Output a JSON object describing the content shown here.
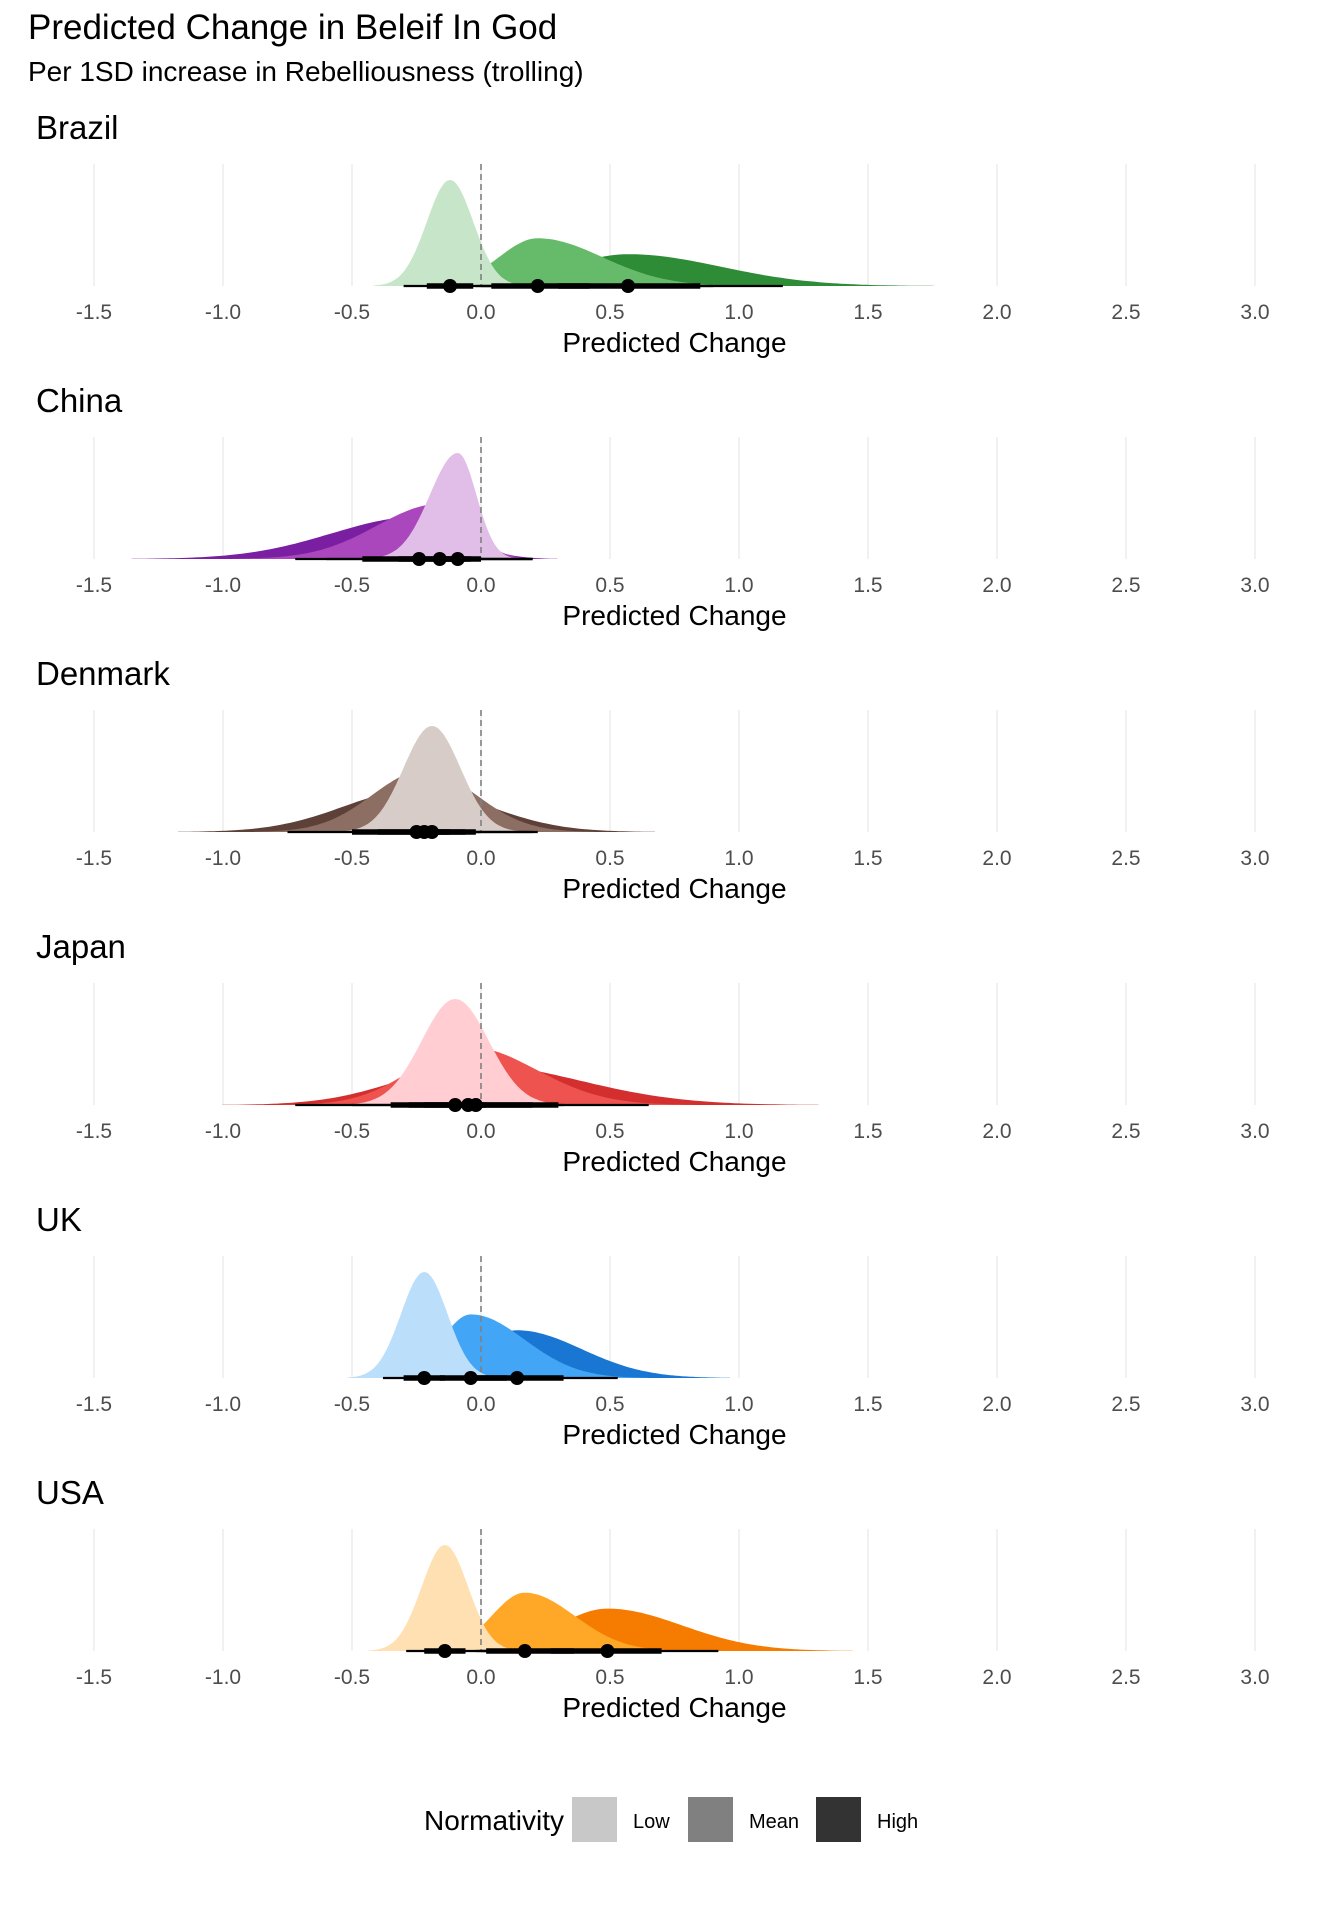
{
  "title": "Predicted Change in Beleif In God",
  "subtitle": "Per 1SD increase in Rebelliousness (trolling)",
  "chart_data": {
    "type": "area",
    "subtype": "half-eye density (posterior distributions) with interval bars",
    "x_label": "Predicted Change",
    "xlim": [
      -1.5,
      3.0
    ],
    "x_ticks": [
      "-1.5",
      "-1.0",
      "-0.5",
      "0.0",
      "0.5",
      "1.0",
      "1.5",
      "2.0",
      "2.5",
      "3.0"
    ],
    "reference_line": 0.0,
    "grid": "vertical",
    "legend": {
      "title": "Normativity",
      "position": "bottom",
      "entries": [
        {
          "label": "Low",
          "color": "#c8c8c8"
        },
        {
          "label": "Mean",
          "color": "#808080"
        },
        {
          "label": "High",
          "color": "#333333"
        }
      ]
    },
    "panels": [
      {
        "name": "Brazil",
        "colors": {
          "low": "#c7e6c9",
          "mean": "#66bb6a",
          "high": "#2e8b36"
        },
        "series": [
          {
            "name": "Low",
            "median": -0.12,
            "sd": 0.09,
            "skew": 0,
            "q66": [
              -0.21,
              -0.03
            ],
            "q95": [
              -0.3,
              0.04
            ],
            "peak": 1.0
          },
          {
            "name": "Mean",
            "median": 0.22,
            "sd": 0.2,
            "skew": 0.25,
            "q66": [
              0.04,
              0.42
            ],
            "q95": [
              -0.02,
              0.9
            ],
            "peak": 0.45
          },
          {
            "name": "High",
            "median": 0.57,
            "sd": 0.3,
            "skew": 0.2,
            "q66": [
              0.3,
              0.85
            ],
            "q95": [
              0.0,
              1.17
            ],
            "peak": 0.3
          }
        ]
      },
      {
        "name": "China",
        "colors": {
          "low": "#e1bee7",
          "mean": "#ab47bc",
          "high": "#7b1fa2"
        },
        "series": [
          {
            "name": "Low",
            "median": -0.09,
            "sd": 0.09,
            "skew": -0.2,
            "q66": [
              -0.18,
              0.0
            ],
            "q95": [
              -0.3,
              0.2
            ],
            "peak": 1.0
          },
          {
            "name": "Mean",
            "median": -0.16,
            "sd": 0.18,
            "skew": -0.35,
            "q66": [
              -0.32,
              -0.04
            ],
            "q95": [
              -0.6,
              0.2
            ],
            "peak": 0.52
          },
          {
            "name": "High",
            "median": -0.24,
            "sd": 0.25,
            "skew": -0.35,
            "q66": [
              -0.46,
              -0.06
            ],
            "q95": [
              -0.72,
              0.2
            ],
            "peak": 0.4
          }
        ]
      },
      {
        "name": "Denmark",
        "colors": {
          "low": "#d7ccc8",
          "mean": "#8d6e63",
          "high": "#5d4037"
        },
        "series": [
          {
            "name": "Low",
            "median": -0.19,
            "sd": 0.11,
            "skew": 0,
            "q66": [
              -0.26,
              -0.12
            ],
            "q95": [
              -0.35,
              0.0
            ],
            "peak": 1.0
          },
          {
            "name": "Mean",
            "median": -0.22,
            "sd": 0.2,
            "skew": 0,
            "q66": [
              -0.4,
              -0.06
            ],
            "q95": [
              -0.5,
              0.2
            ],
            "peak": 0.58
          },
          {
            "name": "High",
            "median": -0.25,
            "sd": 0.28,
            "skew": 0,
            "q66": [
              -0.5,
              -0.02
            ],
            "q95": [
              -0.75,
              0.22
            ],
            "peak": 0.4
          }
        ]
      },
      {
        "name": "Japan",
        "colors": {
          "low": "#ffcdd2",
          "mean": "#ef5350",
          "high": "#d32f2f"
        },
        "series": [
          {
            "name": "Low",
            "median": -0.1,
            "sd": 0.13,
            "skew": 0,
            "q66": [
              -0.22,
              0.02
            ],
            "q95": [
              -0.35,
              0.1
            ],
            "peak": 1.0
          },
          {
            "name": "Mean",
            "median": -0.05,
            "sd": 0.24,
            "skew": 0.1,
            "q66": [
              -0.28,
              0.2
            ],
            "q95": [
              -0.5,
              0.32
            ],
            "peak": 0.55
          },
          {
            "name": "High",
            "median": -0.02,
            "sd": 0.35,
            "skew": 0.15,
            "q66": [
              -0.35,
              0.3
            ],
            "q95": [
              -0.72,
              0.65
            ],
            "peak": 0.38
          }
        ]
      },
      {
        "name": "UK",
        "colors": {
          "low": "#bbdefb",
          "mean": "#42a5f5",
          "high": "#1976d2"
        },
        "series": [
          {
            "name": "Low",
            "median": -0.22,
            "sd": 0.09,
            "skew": 0,
            "q66": [
              -0.3,
              -0.14
            ],
            "q95": [
              -0.38,
              -0.04
            ],
            "peak": 1.0
          },
          {
            "name": "Mean",
            "median": -0.04,
            "sd": 0.16,
            "skew": 0.3,
            "q66": [
              -0.16,
              0.1
            ],
            "q95": [
              -0.3,
              0.3
            ],
            "peak": 0.6
          },
          {
            "name": "High",
            "median": 0.14,
            "sd": 0.2,
            "skew": 0.25,
            "q66": [
              -0.05,
              0.32
            ],
            "q95": [
              -0.2,
              0.53
            ],
            "peak": 0.45
          }
        ]
      },
      {
        "name": "USA",
        "colors": {
          "low": "#ffe0b2",
          "mean": "#ffa726",
          "high": "#f57c00"
        },
        "series": [
          {
            "name": "Low",
            "median": -0.14,
            "sd": 0.09,
            "skew": 0,
            "q66": [
              -0.22,
              -0.06
            ],
            "q95": [
              -0.29,
              0.02
            ],
            "peak": 1.0
          },
          {
            "name": "Mean",
            "median": 0.17,
            "sd": 0.16,
            "skew": 0.2,
            "q66": [
              0.02,
              0.36
            ],
            "q95": [
              -0.02,
              0.7
            ],
            "peak": 0.55
          },
          {
            "name": "High",
            "median": 0.49,
            "sd": 0.24,
            "skew": 0.2,
            "q66": [
              0.27,
              0.7
            ],
            "q95": [
              0.0,
              0.92
            ],
            "peak": 0.4
          }
        ]
      }
    ]
  }
}
